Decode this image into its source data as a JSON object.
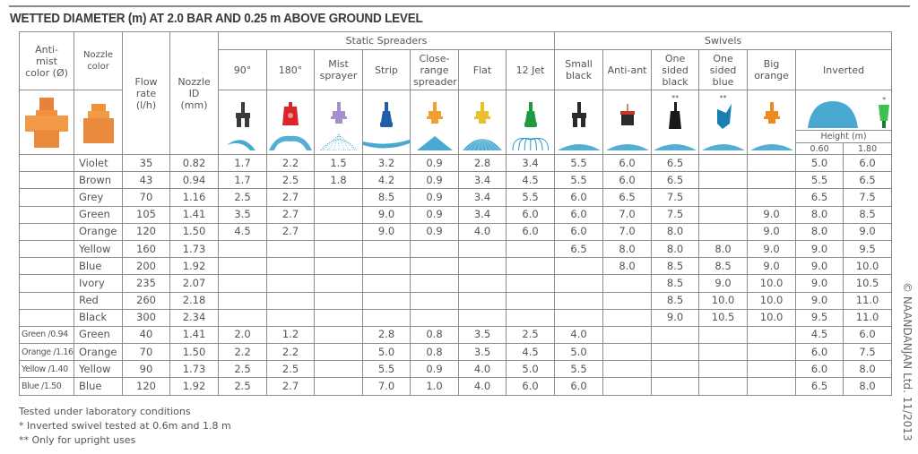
{
  "title": "WETTED DIAMETER (m) AT 2.0 BAR AND 0.25 m ABOVE GROUND LEVEL",
  "headers": {
    "anti_mist": "Anti-mist color (Ø)",
    "nozzle_color": "Nozzle color",
    "flow_rate": "Flow rate (l/h)",
    "nozzle_id": "Nozzle ID (mm)",
    "static_group": "Static Spreaders",
    "swivels_group": "Swivels",
    "height_label": "Height (m)",
    "height_values": [
      "0.60",
      "1.80"
    ]
  },
  "products": [
    {
      "label": "90°",
      "icon": "nozzle-90-icon",
      "color": "#3a3a3a",
      "mark": ""
    },
    {
      "label": "180°",
      "icon": "nozzle-180-icon",
      "color": "#d8262c",
      "mark": ""
    },
    {
      "label": "Mist sprayer",
      "icon": "mist-sprayer-icon",
      "color": "#a78fcf",
      "mark": ""
    },
    {
      "label": "Strip",
      "icon": "strip-nozzle-icon",
      "color": "#1f5fa8",
      "mark": ""
    },
    {
      "label": "Close-range spreader",
      "icon": "close-range-spreader-icon",
      "color": "#f0a030",
      "mark": ""
    },
    {
      "label": "Flat",
      "icon": "flat-nozzle-icon",
      "color": "#e8c030",
      "mark": ""
    },
    {
      "label": "12 Jet",
      "icon": "twelve-jet-nozzle-icon",
      "color": "#1f9a40",
      "mark": ""
    },
    {
      "label": "Small black",
      "icon": "small-black-swivel-icon",
      "color": "#2a2a2a",
      "mark": ""
    },
    {
      "label": "Anti-ant",
      "icon": "anti-ant-swivel-icon",
      "color": "#2a2a2a",
      "mark": ""
    },
    {
      "label": "One sided black",
      "icon": "one-sided-black-swivel-icon",
      "color": "#1a1a1a",
      "mark": "**"
    },
    {
      "label": "One sided blue",
      "icon": "one-sided-blue-swivel-icon",
      "color": "#1a7fb0",
      "mark": "**"
    },
    {
      "label": "Big orange",
      "icon": "big-orange-swivel-icon",
      "color": "#f08a20",
      "mark": ""
    },
    {
      "label": "Inverted",
      "icon": "inverted-swivel-icon",
      "color": "#3cc050",
      "mark": "*"
    }
  ],
  "rows": [
    [
      "",
      "Violet",
      "35",
      "0.82",
      "1.7",
      "2.2",
      "1.5",
      "3.2",
      "0.9",
      "2.8",
      "3.4",
      "5.5",
      "6.0",
      "6.5",
      "",
      "",
      "5.0",
      "6.0"
    ],
    [
      "",
      "Brown",
      "43",
      "0.94",
      "1.7",
      "2.5",
      "1.8",
      "4.2",
      "0.9",
      "3.4",
      "4.5",
      "5.5",
      "6.0",
      "6.5",
      "",
      "",
      "5.5",
      "6.5"
    ],
    [
      "",
      "Grey",
      "70",
      "1.16",
      "2.5",
      "2.7",
      "",
      "8.5",
      "0.9",
      "3.4",
      "5.5",
      "6.0",
      "6.5",
      "7.5",
      "",
      "",
      "6.5",
      "7.5"
    ],
    [
      "",
      "Green",
      "105",
      "1.41",
      "3.5",
      "2.7",
      "",
      "9.0",
      "0.9",
      "3.4",
      "6.0",
      "6.0",
      "7.0",
      "7.5",
      "",
      "9.0",
      "8.0",
      "8.5"
    ],
    [
      "",
      "Orange",
      "120",
      "1.50",
      "4.5",
      "2.7",
      "",
      "9.0",
      "0.9",
      "4.0",
      "6.0",
      "6.0",
      "7.0",
      "8.0",
      "",
      "9.0",
      "8.0",
      "9.0"
    ],
    [
      "",
      "Yellow",
      "160",
      "1.73",
      "",
      "",
      "",
      "",
      "",
      "",
      "",
      "6.5",
      "8.0",
      "8.0",
      "8.0",
      "9.0",
      "9.0",
      "9.5"
    ],
    [
      "",
      "Blue",
      "200",
      "1.92",
      "",
      "",
      "",
      "",
      "",
      "",
      "",
      "",
      "8.0",
      "8.5",
      "8.5",
      "9.0",
      "9.0",
      "10.0"
    ],
    [
      "",
      "Ivory",
      "235",
      "2.07",
      "",
      "",
      "",
      "",
      "",
      "",
      "",
      "",
      "",
      "8.5",
      "9.0",
      "10.0",
      "9.0",
      "10.5"
    ],
    [
      "",
      "Red",
      "260",
      "2.18",
      "",
      "",
      "",
      "",
      "",
      "",
      "",
      "",
      "",
      "8.5",
      "10.0",
      "10.0",
      "9.0",
      "11.0"
    ],
    [
      "",
      "Black",
      "300",
      "2.34",
      "",
      "",
      "",
      "",
      "",
      "",
      "",
      "",
      "",
      "9.0",
      "10.5",
      "10.0",
      "9.5",
      "11.0"
    ],
    [
      "Green /0.94",
      "Green",
      "40",
      "1.41",
      "2.0",
      "1.2",
      "",
      "2.8",
      "0.8",
      "3.5",
      "2.5",
      "4.0",
      "",
      "",
      "",
      "",
      "4.5",
      "6.0"
    ],
    [
      "Orange /1.16",
      "Orange",
      "70",
      "1.50",
      "2.2",
      "2.2",
      "",
      "5.0",
      "0.8",
      "3.5",
      "4.5",
      "5.0",
      "",
      "",
      "",
      "",
      "6.0",
      "7.5"
    ],
    [
      "Yellow /1.40",
      "Yellow",
      "90",
      "1.73",
      "2.5",
      "2.5",
      "",
      "5.5",
      "0.9",
      "4.0",
      "5.0",
      "5.5",
      "",
      "",
      "",
      "",
      "6.0",
      "8.0"
    ],
    [
      "Blue /1.50",
      "Blue",
      "120",
      "1.92",
      "2.5",
      "2.7",
      "",
      "7.0",
      "1.0",
      "4.0",
      "6.0",
      "6.0",
      "",
      "",
      "",
      "",
      "6.5",
      "8.0"
    ]
  ],
  "notes": [
    "Tested under laboratory conditions",
    "* Inverted swivel tested  at 0.6m and 1.8 m",
    "** Only for upright uses"
  ],
  "copyright": "© NAANDANJAN Ltd. 11/2013",
  "colors": {
    "grid": "#8c8c8c",
    "spray": "#2a9ac8",
    "part_orange": "#f0903a"
  }
}
